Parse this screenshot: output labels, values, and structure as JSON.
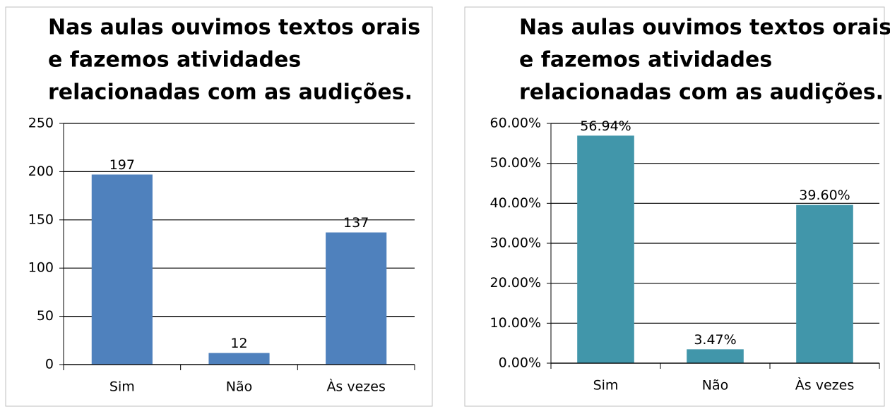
{
  "chart_data": [
    {
      "type": "bar",
      "title": [
        "Nas aulas ouvimos textos orais",
        "e fazemos atividades",
        "relacionadas com as audições."
      ],
      "categories": [
        "Sim",
        "Não",
        "Às vezes"
      ],
      "values": [
        197,
        12,
        137
      ],
      "color": "#4f81bd",
      "ylim": [
        0,
        250
      ],
      "yticks": [
        0,
        50,
        100,
        150,
        200,
        250
      ],
      "grid": true
    },
    {
      "type": "bar",
      "title": [
        "Nas aulas ouvimos textos orais",
        "e fazemos atividades",
        "relacionadas com as audições."
      ],
      "categories": [
        "Sim",
        "Não",
        "Às vezes"
      ],
      "values": [
        56.94,
        3.47,
        39.6
      ],
      "value_labels": [
        "56.94%",
        "3.47%",
        "39.60%"
      ],
      "color": "#4196aa",
      "ylim": [
        0,
        60
      ],
      "yticks": [
        {
          "value": 0,
          "label": "0.00%"
        },
        {
          "value": 10,
          "label": "10.00%"
        },
        {
          "value": 20,
          "label": "20.00%"
        },
        {
          "value": 30,
          "label": "30.00%"
        },
        {
          "value": 40,
          "label": "40.00%"
        },
        {
          "value": 50,
          "label": "50.00%"
        },
        {
          "value": 60,
          "label": "60.00%"
        }
      ],
      "grid": true
    }
  ]
}
